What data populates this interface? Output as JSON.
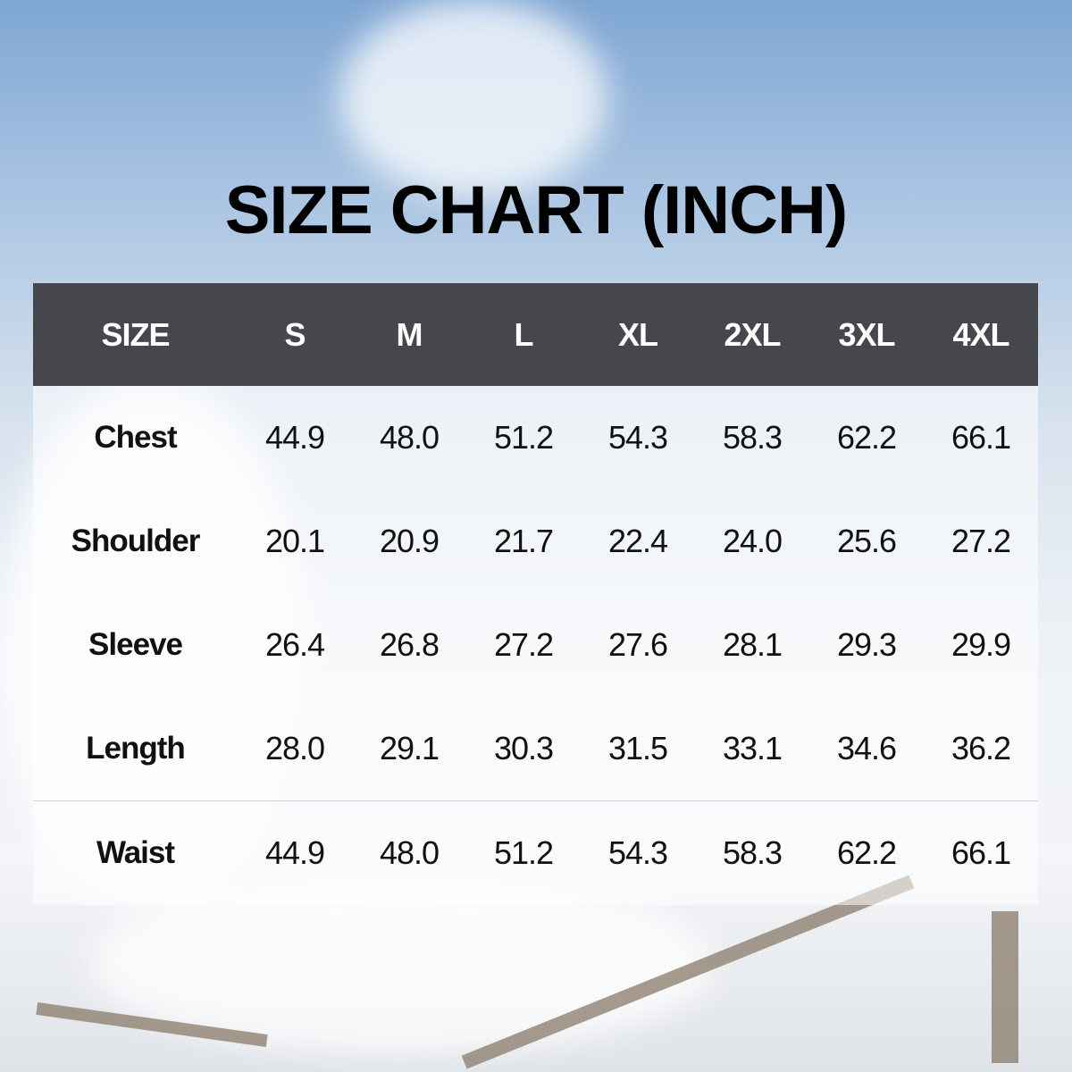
{
  "title": "SIZE CHART (INCH)",
  "colors": {
    "header_bg": "#45474d",
    "header_text": "#ffffff",
    "body_text": "#111111"
  },
  "table": {
    "headers": [
      "SIZE",
      "S",
      "M",
      "L",
      "XL",
      "2XL",
      "3XL",
      "4XL"
    ],
    "rows": [
      {
        "label": "Chest",
        "values": [
          "44.9",
          "48.0",
          "51.2",
          "54.3",
          "58.3",
          "62.2",
          "66.1"
        ]
      },
      {
        "label": "Shoulder",
        "values": [
          "20.1",
          "20.9",
          "21.7",
          "22.4",
          "24.0",
          "25.6",
          "27.2"
        ]
      },
      {
        "label": "Sleeve",
        "values": [
          "26.4",
          "26.8",
          "27.2",
          "27.6",
          "28.1",
          "29.3",
          "29.9"
        ]
      },
      {
        "label": "Length",
        "values": [
          "28.0",
          "29.1",
          "30.3",
          "31.5",
          "33.1",
          "34.6",
          "36.2"
        ]
      },
      {
        "label": "Waist",
        "values": [
          "44.9",
          "48.0",
          "51.2",
          "54.3",
          "58.3",
          "62.2",
          "66.1"
        ]
      }
    ]
  }
}
